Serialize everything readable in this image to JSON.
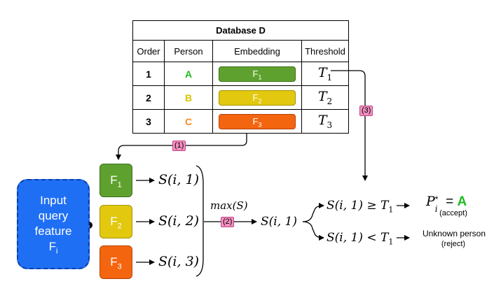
{
  "database": {
    "title": "Database D",
    "columns": [
      "Order",
      "Person",
      "Embedding",
      "Threshold"
    ],
    "rows": [
      {
        "order": "1",
        "person": "A",
        "embedding": "F",
        "embedding_sub": "1",
        "threshold": "T",
        "threshold_sub": "1",
        "person_color": "#22bb22",
        "emb_color": "#5fa12e"
      },
      {
        "order": "2",
        "person": "B",
        "embedding": "F",
        "embedding_sub": "2",
        "threshold": "T",
        "threshold_sub": "2",
        "person_color": "#d9c400",
        "emb_color": "#e2c80e"
      },
      {
        "order": "3",
        "person": "C",
        "embedding": "F",
        "embedding_sub": "3",
        "threshold": "T",
        "threshold_sub": "3",
        "person_color": "#ff8a1e",
        "emb_color": "#f4650f"
      }
    ]
  },
  "steps": {
    "step1": "(1)",
    "step2": "(2)",
    "step3": "(3)"
  },
  "query": {
    "line1": "Input",
    "line2": "query",
    "line3": "feature",
    "line4": "F",
    "line4_sub": "i"
  },
  "features": [
    {
      "label": "F",
      "sub": "1",
      "score": "S(i, 1)",
      "color": "#5fa12e"
    },
    {
      "label": "F",
      "sub": "2",
      "score": "S(i, 2)",
      "color": "#e2c80e"
    },
    {
      "label": "F",
      "sub": "3",
      "score": "S(i, 3)",
      "color": "#f4650f"
    }
  ],
  "max_label": "max(S)",
  "selected_score": "S(i, 1)",
  "decision": {
    "accept_condition": "S(i, 1) ≥ T",
    "accept_condition_sub": "1",
    "reject_condition": "S(i, 1) < T",
    "reject_condition_sub": "1",
    "accept_result_symbol": "P",
    "accept_result_sup": "*",
    "accept_result_sub": "i",
    "accept_result_eq": "=",
    "accept_result_value": "A",
    "accept_note": "(accept)",
    "reject_result": "Unknown person",
    "reject_note": "(reject)"
  },
  "colors": {
    "accept_green": "#22bb22",
    "pink_label": "#f48fc1",
    "query_blue": "#1f6ff5"
  }
}
